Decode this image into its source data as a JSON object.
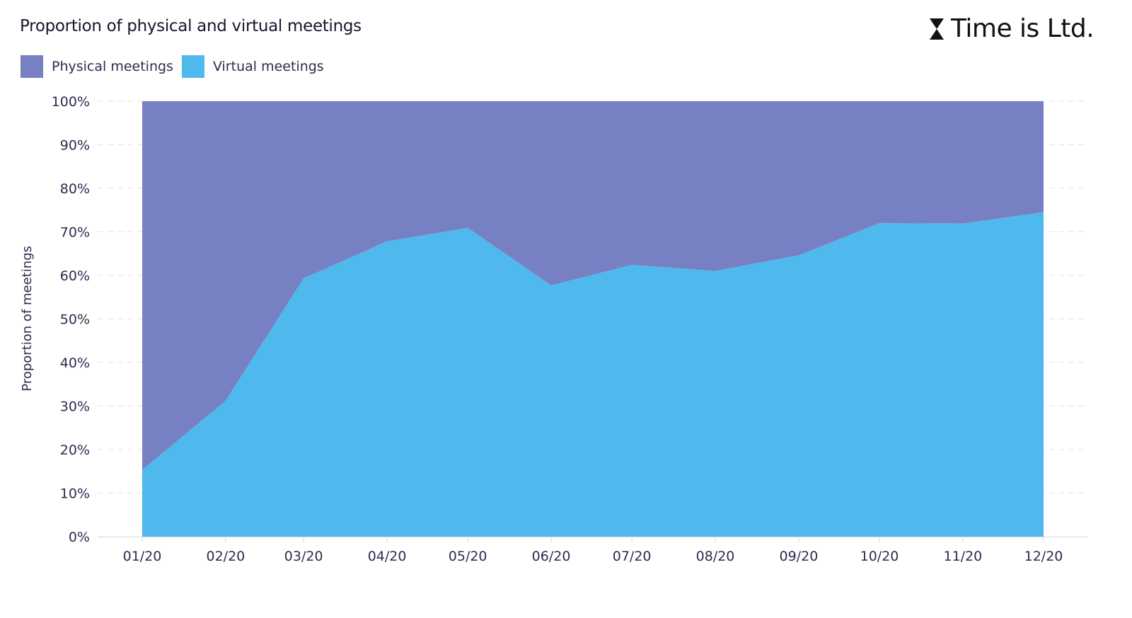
{
  "logo_text": "Time is Ltd.",
  "chart_data": {
    "type": "area",
    "stacked": true,
    "normalized": true,
    "title": "Proportion of physical and virtual meetings",
    "xlabel": "",
    "ylabel": "Proportion of meetings",
    "ylim": [
      0,
      100
    ],
    "yticks": [
      "0%",
      "10%",
      "20%",
      "30%",
      "40%",
      "50%",
      "60%",
      "70%",
      "80%",
      "90%",
      "100%"
    ],
    "grid": true,
    "legend_position": "top-left",
    "categories": [
      "01/20",
      "02/20",
      "03/20",
      "04/20",
      "05/20",
      "06/20",
      "07/20",
      "08/20",
      "09/20",
      "10/20",
      "11/20",
      "12/20"
    ],
    "dates": [
      "2020-01-01",
      "2020-02-01",
      "2020-03-01",
      "2020-04-01",
      "2020-05-01",
      "2020-06-01",
      "2020-07-01",
      "2020-08-01",
      "2020-09-01",
      "2020-10-01",
      "2020-11-01",
      "2020-12-01"
    ],
    "series": [
      {
        "name": "Physical meetings",
        "color": "#7880c4",
        "values": [
          84.7,
          68.8,
          40.7,
          32.2,
          29.1,
          42.3,
          37.6,
          39.0,
          35.4,
          28.0,
          28.1,
          25.5
        ]
      },
      {
        "name": "Virtual meetings",
        "color": "#4fb8ec",
        "values": [
          15.3,
          31.2,
          59.3,
          67.8,
          70.9,
          57.7,
          62.4,
          61.0,
          64.6,
          72.0,
          71.9,
          74.5
        ]
      }
    ]
  }
}
